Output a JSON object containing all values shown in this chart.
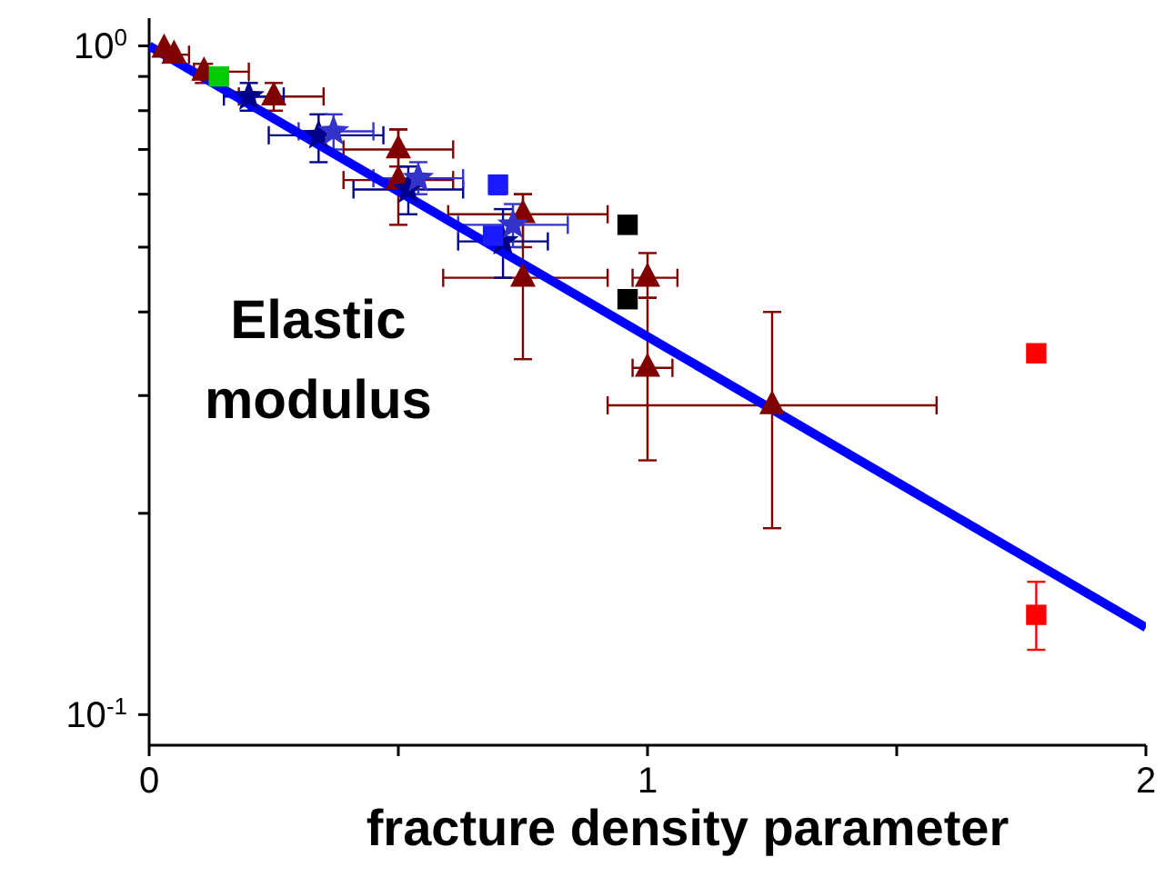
{
  "chart_data": {
    "type": "scatter",
    "xlabel": "fracture density parameter",
    "annotations": [
      "Elastic modulus"
    ],
    "log": "y",
    "grid": false,
    "legend": false,
    "xlim": [
      0,
      2
    ],
    "xticks": [
      0,
      {
        "value": 0.5,
        "label": null
      },
      1,
      {
        "value": 1.5,
        "label": null
      },
      2
    ],
    "ylim": [
      0.09,
      1.1
    ],
    "yticks": [
      {
        "value": 0.1,
        "label": "10$^{-1}$"
      },
      {
        "value": 0.2,
        "label": null
      },
      {
        "value": 0.3,
        "label": null
      },
      {
        "value": 0.4,
        "label": null
      },
      {
        "value": 0.5,
        "label": null
      },
      {
        "value": 0.6,
        "label": null
      },
      {
        "value": 0.7,
        "label": null
      },
      {
        "value": 0.8,
        "label": null
      },
      {
        "value": 0.9,
        "label": null
      },
      {
        "value": 1,
        "label": "10$^{0}$"
      }
    ],
    "series": [
      {
        "type": "line",
        "color": "#0000ff",
        "marker": "none",
        "x": [
          0,
          2
        ],
        "values": [
          1,
          0.135
        ]
      },
      {
        "color": "#800000",
        "marker": "triangle",
        "x": [
          0.03,
          0.05,
          0.11,
          0.25,
          0.5,
          0.75,
          1.0,
          1.25
        ],
        "values": [
          0.99,
          0.97,
          0.915,
          0.84,
          0.63,
          0.45,
          0.33,
          0.29
        ],
        "errors": [
          null,
          null,
          [
            0.88,
            0.94
          ],
          [
            0.8,
            0.88
          ],
          [
            0.54,
            0.75
          ],
          [
            0.34,
            0.6
          ],
          [
            0.24,
            0.42
          ],
          [
            0.19,
            0.4
          ]
        ],
        "xerrors": [
          null,
          [
            0.03,
            0.08
          ],
          [
            0.09,
            0.2
          ],
          [
            0.18,
            0.35
          ],
          [
            0.39,
            0.61
          ],
          [
            0.59,
            0.92
          ],
          [
            0.97,
            1.05
          ],
          [
            0.92,
            1.58
          ]
        ]
      },
      {
        "color": "#800000",
        "marker": "triangle",
        "x": [
          0.5,
          0.75,
          1.0
        ],
        "values": [
          0.7,
          0.56,
          0.45
        ],
        "errors": [
          [
            0.66,
            0.75
          ],
          [
            0.5,
            0.6
          ],
          [
            0.42,
            0.49
          ]
        ],
        "xerrors": [
          [
            0.39,
            0.61
          ],
          [
            0.6,
            0.92
          ],
          [
            0.97,
            1.06
          ]
        ]
      },
      {
        "color": "#00008b",
        "marker": "star",
        "x": [
          0.2,
          0.34,
          0.52,
          0.71
        ],
        "values": [
          0.84,
          0.735,
          0.61,
          0.51
        ],
        "errors": [
          [
            0.8,
            0.88
          ],
          [
            0.67,
            0.79
          ],
          [
            0.56,
            0.66
          ],
          [
            0.45,
            0.57
          ]
        ],
        "xerrors": [
          [
            0.15,
            0.27
          ],
          [
            0.24,
            0.47
          ],
          [
            0.41,
            0.63
          ],
          [
            0.62,
            0.8
          ]
        ]
      },
      {
        "color": "#3333cc",
        "marker": "star",
        "x": [
          0.37,
          0.54,
          0.73
        ],
        "values": [
          0.745,
          0.634,
          0.54
        ],
        "errors": [
          [
            0.7,
            0.79
          ],
          [
            0.6,
            0.67
          ],
          [
            0.5,
            0.58
          ]
        ],
        "xerrors": [
          [
            0.3,
            0.45
          ],
          [
            0.45,
            0.63
          ],
          [
            0.62,
            0.84
          ]
        ]
      },
      {
        "color": "#1a1aff",
        "marker": "square",
        "x": [
          0.69,
          0.7
        ],
        "values": [
          0.52,
          0.62
        ],
        "errors": [
          null,
          [
            0.6,
            0.64
          ]
        ]
      },
      {
        "color": "#000000",
        "marker": "square",
        "x": [
          0.96,
          0.96
        ],
        "values": [
          0.418,
          0.54
        ],
        "errors": [
          null,
          [
            0.53,
            0.555
          ]
        ]
      },
      {
        "color": "#ff0000",
        "marker": "square",
        "x": [
          1.78,
          1.78
        ],
        "values": [
          0.141,
          0.347
        ],
        "errors": [
          [
            0.125,
            0.158
          ],
          [
            0.34,
            0.355
          ]
        ]
      },
      {
        "color": "#00cc00",
        "marker": "square",
        "x": [
          0.14
        ],
        "values": [
          0.9
        ]
      }
    ]
  }
}
